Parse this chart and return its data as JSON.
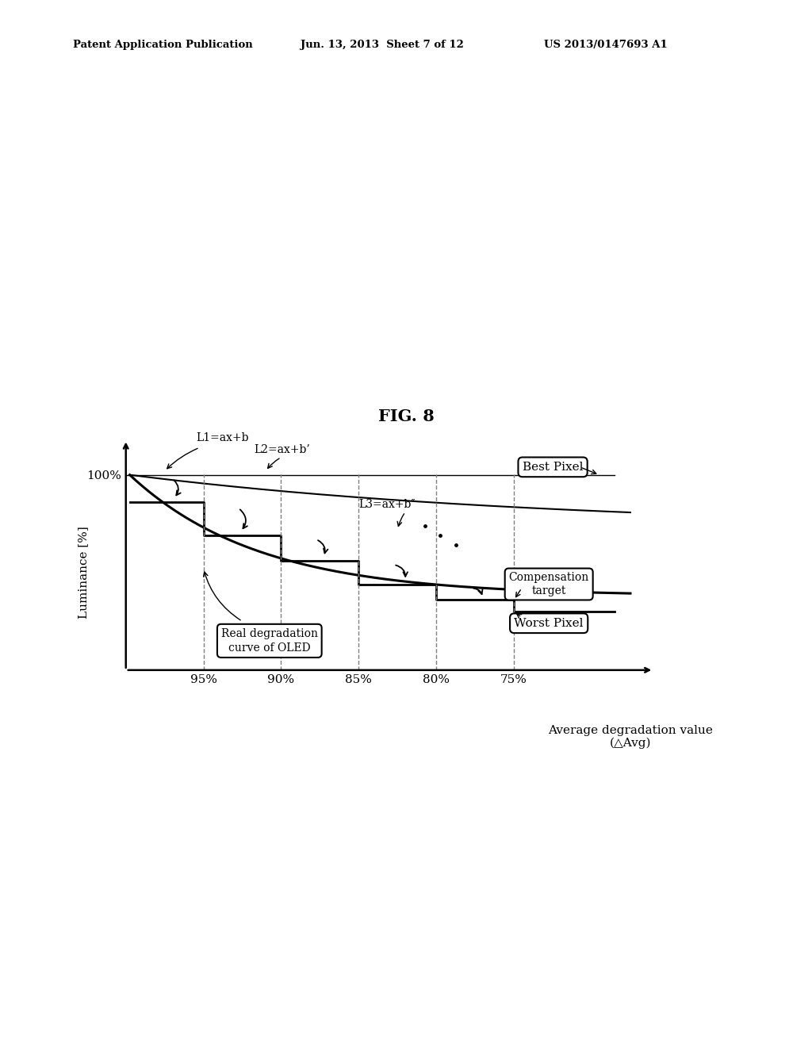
{
  "fig_title": "FIG. 8",
  "header_left": "Patent Application Publication",
  "header_center": "Jun. 13, 2013  Sheet 7 of 12",
  "header_right": "US 2013/0147693 A1",
  "xlabel": "Average degradation value\n(△Avg)",
  "ylabel": "Luminance [%]",
  "xtick_labels": [
    "95%",
    "90%",
    "85%",
    "80%",
    "75%"
  ],
  "ytick_label": "100%",
  "label_L1": "L1=ax+b",
  "label_L2": "L2=ax+b’",
  "label_L3": "L3=ax+b″",
  "label_best": "Best Pixel",
  "label_worst": "Worst Pixel",
  "label_comp": "Compensation\ntarget",
  "label_real": "Real degradation\ncurve of OLED",
  "bg_color": "#ffffff"
}
